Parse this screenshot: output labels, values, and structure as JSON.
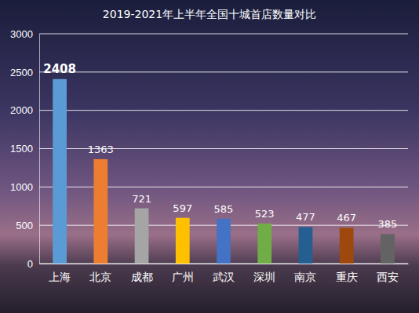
{
  "chart_data": {
    "type": "bar",
    "title": "2019-2021年上半年全国十城首店数量对比",
    "categories": [
      "上海",
      "北京",
      "成都",
      "广州",
      "武汉",
      "深圳",
      "南京",
      "重庆",
      "西安"
    ],
    "values": [
      2408,
      1363,
      721,
      597,
      585,
      523,
      477,
      467,
      385
    ],
    "colors": [
      "#5b9bd5",
      "#ed7d31",
      "#a5a5a5",
      "#ffc000",
      "#4472c4",
      "#70ad47",
      "#255e91",
      "#9e480e",
      "#636363"
    ],
    "ylim": [
      0,
      3000
    ],
    "yticks": [
      0,
      500,
      1000,
      1500,
      2000,
      2500,
      3000
    ],
    "grid": true,
    "data_labels": true
  }
}
